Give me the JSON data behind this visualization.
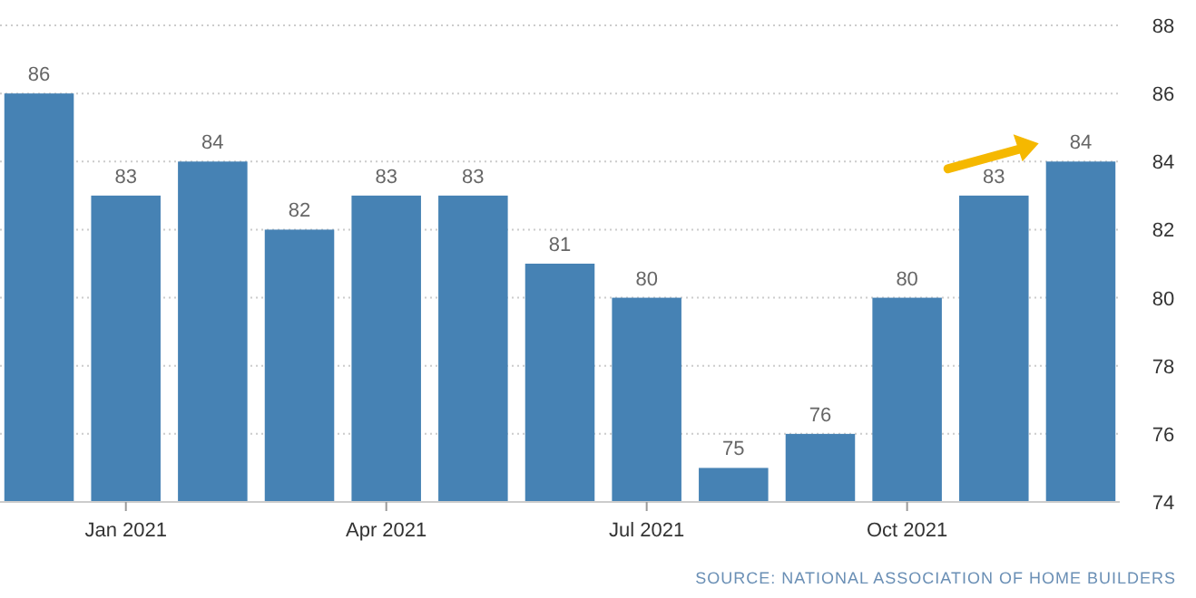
{
  "chart_data": {
    "type": "bar",
    "categories": [
      null,
      "Jan 2021",
      null,
      null,
      "Apr 2021",
      null,
      null,
      "Jul 2021",
      null,
      null,
      "Oct 2021",
      null,
      null
    ],
    "values": [
      86,
      83,
      84,
      82,
      83,
      83,
      81,
      80,
      75,
      76,
      80,
      83,
      84
    ],
    "color": "#4682b4",
    "ylim": [
      74,
      88
    ],
    "yticks": [
      74,
      76,
      78,
      80,
      82,
      84,
      86,
      88
    ],
    "grid": "y",
    "data_labels": true,
    "annotations": [
      "SOURCE: NATIONAL ASSOCIATION OF HOME BUILDERS"
    ]
  }
}
